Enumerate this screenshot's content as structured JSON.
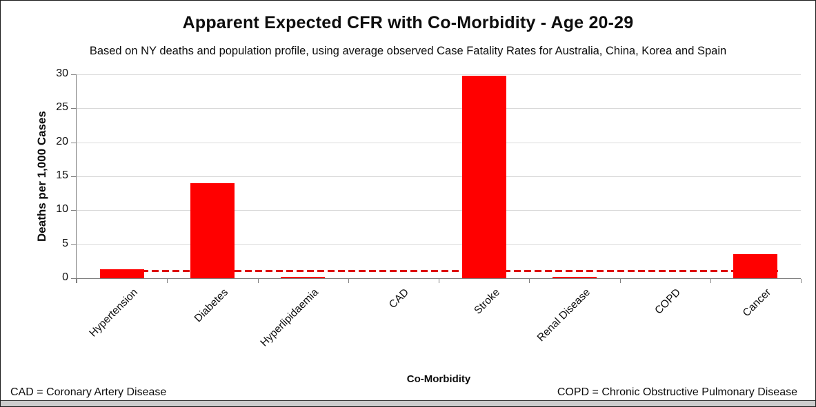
{
  "chart_data": {
    "type": "bar",
    "title": "Apparent Expected CFR with Co-Morbidity - Age 20-29",
    "subtitle": "Based on NY deaths and population profile, using average observed Case Fatality Rates for Australia, China, Korea and Spain",
    "xlabel": "Co-Morbidity",
    "ylabel": "Deaths per 1,000 Cases",
    "categories": [
      "Hypertension",
      "Diabetes",
      "Hyperlipidaemia",
      "CAD",
      "Stroke",
      "Renal Disease",
      "COPD",
      "Cancer"
    ],
    "values": [
      1.3,
      14.0,
      0.2,
      0,
      29.8,
      0.2,
      0,
      3.5
    ],
    "baseline": {
      "value": 1.0,
      "style": "dashed"
    },
    "ylim": [
      0,
      30
    ],
    "yticks": [
      0,
      5,
      10,
      15,
      20,
      25,
      30
    ],
    "grid": true,
    "legend": "none"
  },
  "colors": {
    "bar": "#FF0000",
    "baseline": "#DD0000",
    "gridline": "#D9D9D9",
    "axis": "#7F7F7F",
    "text": "#0D0D0D",
    "background": "#FFFFFF",
    "footer_strip": "#CDCDCD"
  },
  "footnotes": {
    "left": "CAD = Coronary Artery Disease",
    "right": "COPD = Chronic Obstructive Pulmonary Disease"
  }
}
